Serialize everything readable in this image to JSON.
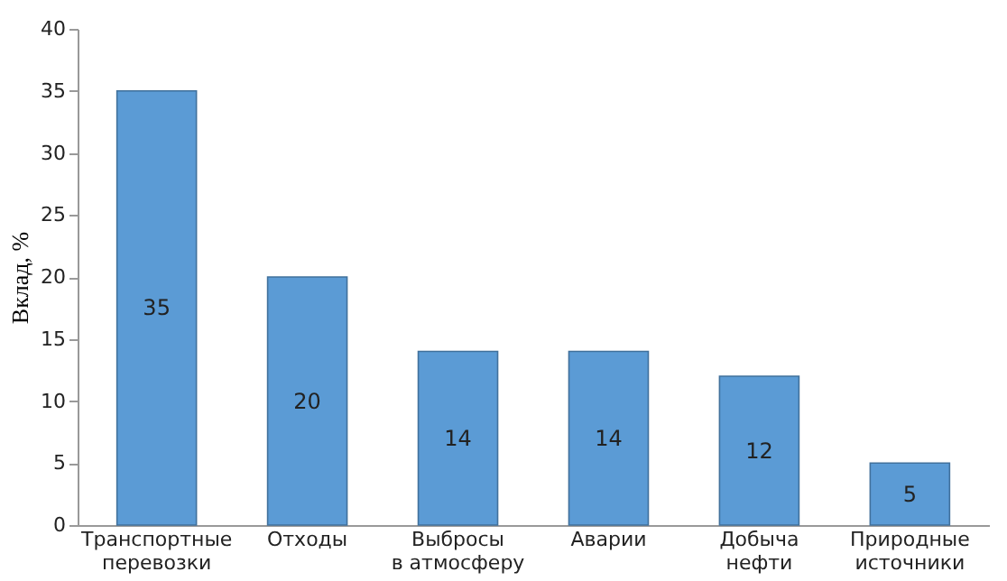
{
  "chart_data": {
    "type": "bar",
    "ylabel": "Вклад, %",
    "categories": [
      "Транспортные\nперевозки",
      "Отходы",
      "Выбросы\nв атмосферу",
      "Аварии",
      "Добыча\nнефти",
      "Природные\nисточники"
    ],
    "values": [
      35,
      20,
      14,
      14,
      12,
      5
    ],
    "color": "#5b9bd5",
    "ylim": [
      0,
      40
    ],
    "yticks": [
      0,
      5,
      10,
      15,
      20,
      25,
      30,
      35,
      40
    ],
    "grid": false,
    "data_labels": true
  }
}
